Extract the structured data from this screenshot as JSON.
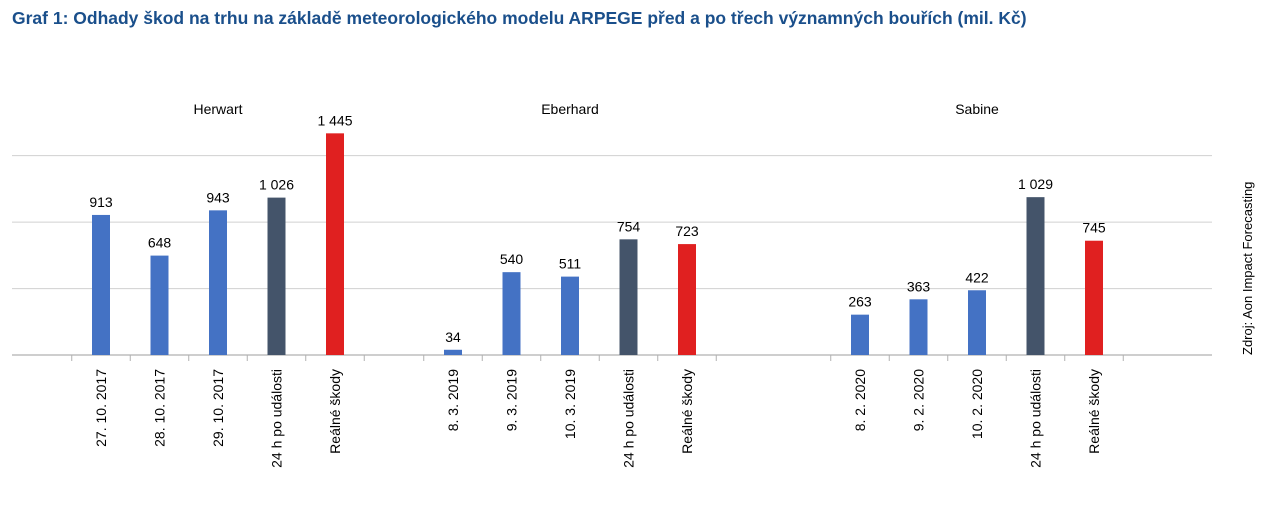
{
  "title": "Graf 1: Odhady škod na trhu na základě meteorologického modelu ARPEGE před a po třech významných bouřích (mil. Kč)",
  "source": "Zdroj: Aon Impact Forecasting",
  "colors": {
    "forecast": "#4472c4",
    "forecast_24h": "#44546a",
    "actual": "#e02020",
    "grid": "#d0d0d0",
    "title": "#1a4f8b"
  },
  "chart_data": {
    "type": "bar",
    "ylim": [
      0,
      1520
    ],
    "grid": true,
    "groups": [
      {
        "name": "Herwart",
        "bars": [
          {
            "category": "27. 10. 2017",
            "value": 913,
            "label": "913",
            "kind": "forecast"
          },
          {
            "category": "28. 10. 2017",
            "value": 648,
            "label": "648",
            "kind": "forecast"
          },
          {
            "category": "29. 10. 2017",
            "value": 943,
            "label": "943",
            "kind": "forecast"
          },
          {
            "category": "24 h po události",
            "value": 1026,
            "label": "1 026",
            "kind": "forecast_24h"
          },
          {
            "category": "Reálné škody",
            "value": 1445,
            "label": "1 445",
            "kind": "actual"
          }
        ]
      },
      {
        "name": "Eberhard",
        "bars": [
          {
            "category": "8. 3. 2019",
            "value": 34,
            "label": "34",
            "kind": "forecast"
          },
          {
            "category": "9. 3. 2019",
            "value": 540,
            "label": "540",
            "kind": "forecast"
          },
          {
            "category": "10. 3. 2019",
            "value": 511,
            "label": "511",
            "kind": "forecast"
          },
          {
            "category": "24 h po události",
            "value": 754,
            "label": "754",
            "kind": "forecast_24h"
          },
          {
            "category": "Reálné škody",
            "value": 723,
            "label": "723",
            "kind": "actual"
          }
        ]
      },
      {
        "name": "Sabine",
        "bars": [
          {
            "category": "8. 2. 2020",
            "value": 263,
            "label": "263",
            "kind": "forecast"
          },
          {
            "category": "9. 2. 2020",
            "value": 363,
            "label": "363",
            "kind": "forecast"
          },
          {
            "category": "10. 2. 2020",
            "value": 422,
            "label": "422",
            "kind": "forecast"
          },
          {
            "category": "24 h po události",
            "value": 1029,
            "label": "1 029",
            "kind": "forecast_24h"
          },
          {
            "category": "Reálné škody",
            "value": 745,
            "label": "745",
            "kind": "actual"
          }
        ]
      }
    ]
  }
}
